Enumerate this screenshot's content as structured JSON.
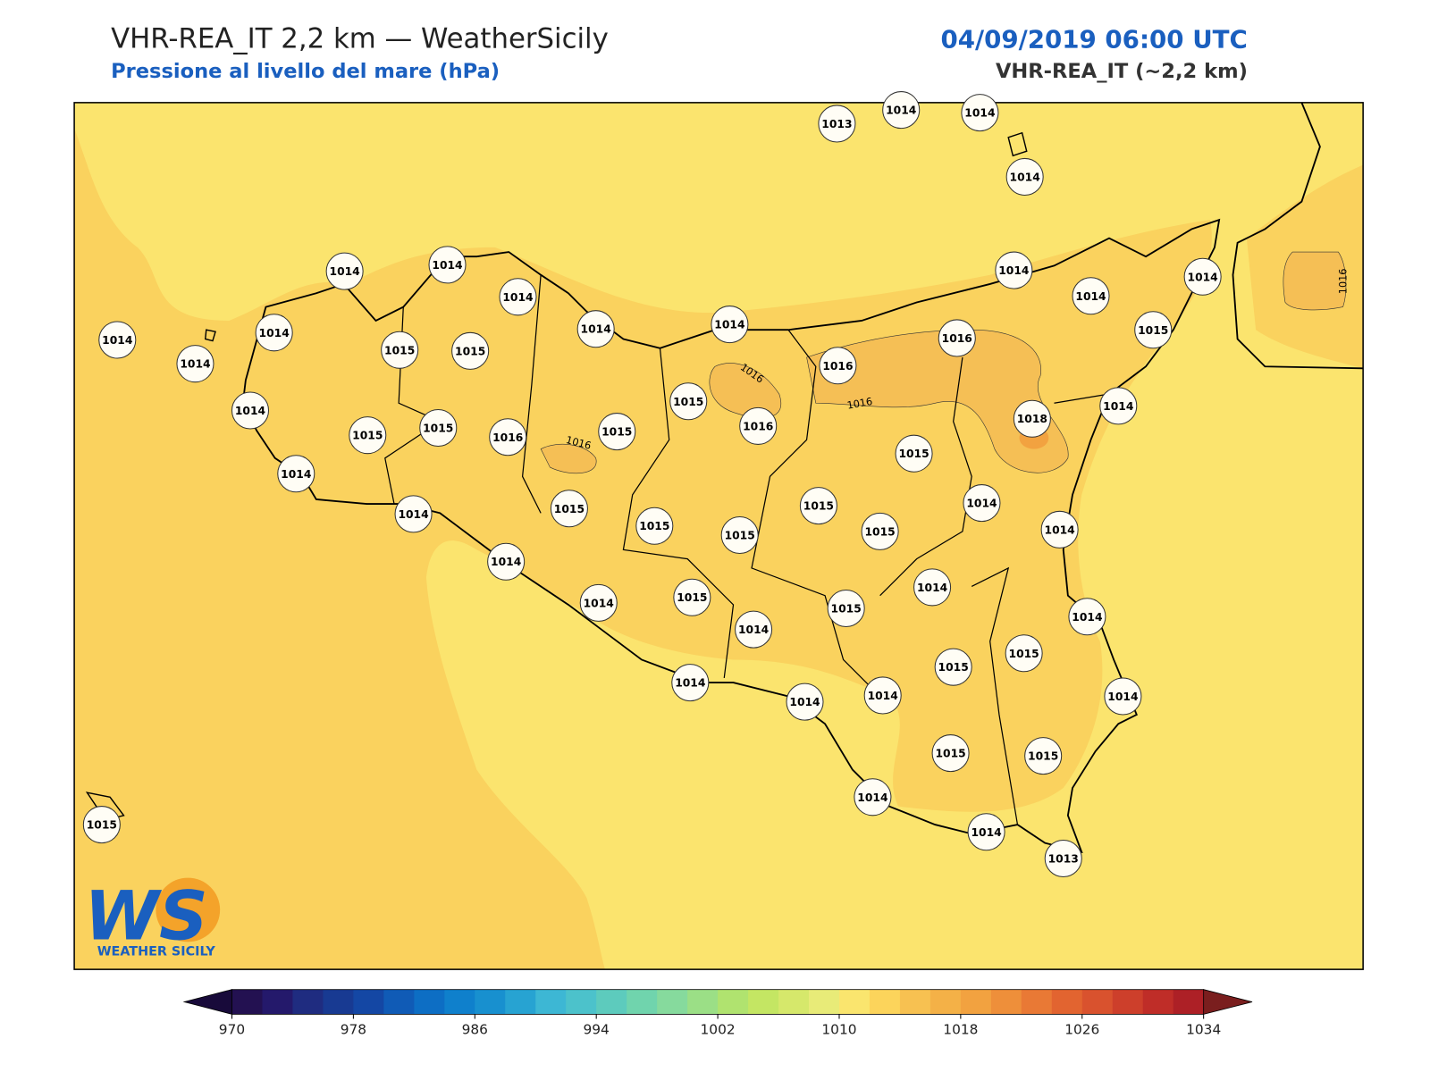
{
  "header": {
    "title": "VHR-REA_IT 2,2 km — WeatherSicily",
    "subtitle": "Pressione al livello del mare (hPa)",
    "date": "04/09/2019 06:00 UTC",
    "model": "VHR-REA_IT (~2,2 km)"
  },
  "stations": [
    1013,
    1014,
    1014,
    1014,
    1014,
    1014,
    1014,
    1014,
    1014,
    1014,
    1015,
    1015,
    1014,
    1014,
    1014,
    1014,
    1014,
    1015,
    1016,
    1016,
    1015,
    1016,
    1014,
    1015,
    1015,
    1016,
    1015,
    1014,
    1018,
    1015,
    1014,
    1014,
    1015,
    1015,
    1015,
    1015,
    1015,
    1014,
    1014,
    1014,
    1014,
    1015,
    1014,
    1015,
    1014,
    1014,
    1015,
    1015,
    1014,
    1014,
    1014,
    1014,
    1015,
    1015,
    1014,
    1014,
    1013,
    1015
  ],
  "contour_labels": [
    "1016",
    "1016",
    "1016",
    "1016"
  ],
  "colorbar": {
    "lim": [
      970,
      1034
    ],
    "ticks": [
      970,
      978,
      986,
      994,
      1002,
      1010,
      1018,
      1026,
      1034
    ],
    "colors": [
      "#231151",
      "#24196b",
      "#1f2c80",
      "#183a92",
      "#1447a4",
      "#105bb6",
      "#0d6ec4",
      "#0f80cc",
      "#1890cf",
      "#27a3d2",
      "#3db7d4",
      "#4cc2cb",
      "#5dcbbd",
      "#70d4ad",
      "#86da9d",
      "#9bdf86",
      "#b0e36f",
      "#c4e663",
      "#d6e86b",
      "#e8eb78",
      "#fae56e",
      "#fcd45b",
      "#f7c151",
      "#f4b147",
      "#f2a240",
      "#ee8f3a",
      "#e97935",
      "#e26430",
      "#d9522e",
      "#cd3f2b",
      "#bf2d28",
      "#ad2026"
    ],
    "under_color": "#180a3a",
    "over_color": "#7a1e1e"
  },
  "logo": {
    "mark": "WS",
    "name": "WEATHER SICILY"
  }
}
